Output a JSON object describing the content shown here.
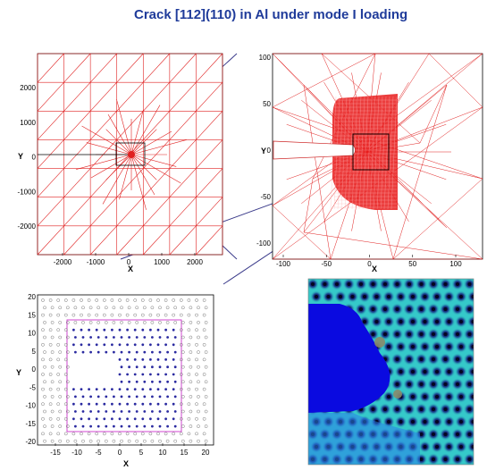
{
  "title": "Crack [112](110) in Al under mode I loading",
  "colors": {
    "title": "#1f3b9a",
    "mesh": "#e02020",
    "dense_mesh": "#e01818",
    "atoms": "#2a2aa0",
    "frame": "#cc33cc",
    "field_bg": "#33cccc",
    "field_void": "#0a0ae0"
  },
  "panels": {
    "coarse": {
      "xlabel": "X",
      "ylabel": "Y",
      "xticks": [
        "-2000",
        "-1000",
        "0",
        "1000",
        "2000"
      ],
      "yticks": [
        "2000",
        "1000",
        "0",
        "-1000",
        "-2000"
      ]
    },
    "zoom": {
      "xlabel": "X",
      "ylabel": "Y",
      "xticks": [
        "-100",
        "-50",
        "0",
        "50",
        "100"
      ],
      "yticks": [
        "100",
        "50",
        "0",
        "-50",
        "-100"
      ]
    },
    "atoms": {
      "xlabel": "X",
      "ylabel": "Y",
      "xticks": [
        "-15",
        "-10",
        "-5",
        "0",
        "5",
        "10",
        "15",
        "20"
      ],
      "yticks": [
        "20",
        "15",
        "10",
        "5",
        "0",
        "-5",
        "-10",
        "-15",
        "-20"
      ]
    },
    "field": {
      "icon": "field-map-image"
    }
  }
}
